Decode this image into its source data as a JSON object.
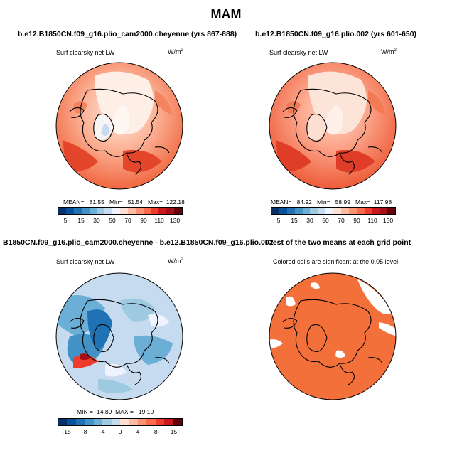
{
  "figure_title": "MAM",
  "panels": [
    {
      "title": "b.e12.B1850CN.f09_g16.plio_cam2000.cheyenne (yrs 867-888)",
      "left_label": "Surf clearsky net LW",
      "units": "W/m",
      "units_sup": "2",
      "stats_text": "MEAN=   81.55   Min=   51.54   Max=  122.18",
      "colorbar_labels": [
        "5",
        "15",
        "30",
        "50",
        "70",
        "90",
        "110",
        "130"
      ]
    },
    {
      "title": "b.e12.B1850CN.f09_g16.plio.002 (yrs 601-650)",
      "left_label": "Surf clearsky net LW",
      "units": "W/m",
      "units_sup": "2",
      "stats_text": "MEAN=   84.92   Min=   58.99   Max=  117.98",
      "colorbar_labels": [
        "5",
        "15",
        "30",
        "50",
        "70",
        "90",
        "110",
        "130"
      ]
    },
    {
      "title": "B1850CN.f09_g16.plio_cam2000.cheyenne - b.e12.B1850CN.f09_g16.plio.002",
      "left_label": "Surf clearsky net LW",
      "units": "W/m",
      "units_sup": "2",
      "stats_text": "MIN = -14.89  MAX =   19.10",
      "colorbar_labels": [
        "-15",
        "-8",
        "-4",
        "0",
        "4",
        "8",
        "15"
      ]
    },
    {
      "title": "T-test of the two means at each grid point",
      "left_label": "Colored cells are significant at the 0.05 level"
    }
  ],
  "colors": {
    "abs_scale": [
      "#08306b",
      "#08519c",
      "#2171b5",
      "#4292c6",
      "#6baed6",
      "#9ecae1",
      "#c6dbef",
      "#eff3ff",
      "#fee0d2",
      "#fcbba1",
      "#fc9272",
      "#fb6a4a",
      "#ef3b2c",
      "#cb181d",
      "#a50f15",
      "#67000d"
    ],
    "diff_scale": [
      "#08306b",
      "#08519c",
      "#2171b5",
      "#4292c6",
      "#6baed6",
      "#9ecae1",
      "#c6dbef",
      "#fee0d2",
      "#fcbba1",
      "#fc9272",
      "#fb6a4a",
      "#ef3b2c",
      "#cb181d",
      "#67000d"
    ],
    "significant": "#f4703a"
  },
  "chart_data": [
    {
      "type": "heatmap",
      "title": "b.e12.B1850CN.f09_g16.plio_cam2000.cheyenne (yrs 867-888)",
      "variable": "Surf clearsky net LW",
      "units": "W/m2",
      "mean": 81.55,
      "min": 51.54,
      "max": 122.18,
      "levels": [
        5,
        10,
        15,
        20,
        30,
        40,
        50,
        60,
        70,
        80,
        90,
        100,
        110,
        120,
        130
      ]
    },
    {
      "type": "heatmap",
      "title": "b.e12.B1850CN.f09_g16.plio.002 (yrs 601-650)",
      "variable": "Surf clearsky net LW",
      "units": "W/m2",
      "mean": 84.92,
      "min": 58.99,
      "max": 117.98,
      "levels": [
        5,
        10,
        15,
        20,
        30,
        40,
        50,
        60,
        70,
        80,
        90,
        100,
        110,
        120,
        130
      ]
    },
    {
      "type": "heatmap",
      "title": "B1850CN.f09_g16.plio_cam2000.cheyenne - b.e12.B1850CN.f09_g16.plio.002",
      "variable": "Surf clearsky net LW",
      "units": "W/m2",
      "min": -14.89,
      "max": 19.1,
      "levels": [
        -15,
        -12,
        -8,
        -6,
        -4,
        -2,
        0,
        2,
        4,
        6,
        8,
        12,
        15
      ]
    },
    {
      "type": "heatmap",
      "title": "T-test of the two means at each grid point",
      "significance_level": 0.05
    }
  ]
}
